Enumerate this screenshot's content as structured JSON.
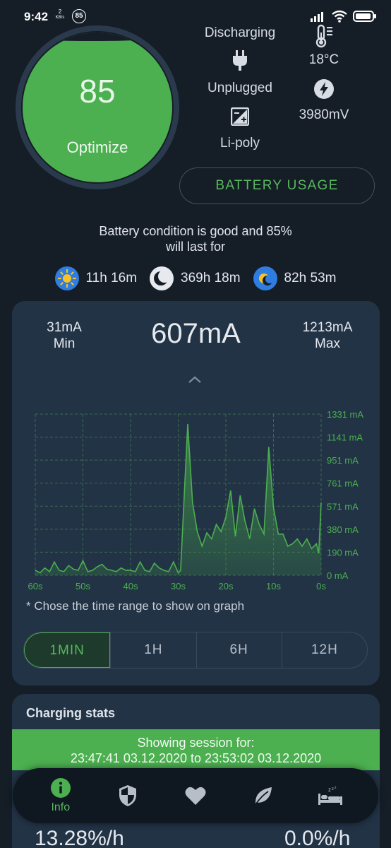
{
  "status_bar": {
    "time": "9:42",
    "net_speed_value": "2",
    "net_speed_unit": "KB/s",
    "notif_badge": "85"
  },
  "battery": {
    "level": "85",
    "level_fraction": 0.85,
    "action_label": "Optimize",
    "status": "Discharging",
    "plug_state": "Unplugged",
    "technology": "Li-poly",
    "temperature": "18°C",
    "voltage": "3980mV",
    "usage_button": "BATTERY USAGE"
  },
  "condition": {
    "line1": "Battery condition is good and 85%",
    "line2": "will last for",
    "estimates": [
      {
        "icon": "sun-icon",
        "value": "11h 16m"
      },
      {
        "icon": "moon-icon",
        "value": "369h 18m"
      },
      {
        "icon": "sun-moon-icon",
        "value": "82h 53m"
      }
    ]
  },
  "current": {
    "min_value": "31mA",
    "min_label": "Min",
    "now_value": "607mA",
    "max_value": "1213mA",
    "max_label": "Max",
    "hint": "* Chose the time range to show on graph",
    "ranges": [
      "1MIN",
      "1H",
      "6H",
      "12H"
    ],
    "active_range": "1MIN"
  },
  "chart_data": {
    "type": "area",
    "x_tick_labels": [
      "60s",
      "50s",
      "40s",
      "30s",
      "20s",
      "10s",
      "0s"
    ],
    "y_tick_labels": [
      "1331 mA",
      "1141 mA",
      "951 mA",
      "761 mA",
      "571 mA",
      "380 mA",
      "190 mA",
      "0 mA"
    ],
    "ylim": [
      0,
      1331
    ],
    "xlim": [
      60,
      0
    ],
    "grid": true,
    "series": [
      {
        "x": [
          60,
          59,
          58,
          57,
          56,
          55,
          54,
          53,
          52,
          51,
          50,
          49,
          48,
          47,
          46,
          45,
          44,
          43,
          42,
          41,
          40,
          39,
          38,
          37,
          36,
          35,
          34,
          33,
          32,
          31,
          30,
          29.5,
          29,
          28,
          27,
          26,
          25,
          24,
          23,
          22,
          21,
          20,
          19,
          18,
          17,
          16,
          15,
          14,
          13,
          12,
          11,
          10,
          9,
          8,
          7,
          6,
          5,
          4,
          3,
          2,
          1,
          0.5,
          0
        ],
        "y": [
          40,
          20,
          60,
          30,
          110,
          40,
          30,
          80,
          50,
          40,
          120,
          30,
          40,
          70,
          90,
          50,
          40,
          30,
          60,
          40,
          40,
          30,
          110,
          40,
          30,
          100,
          60,
          40,
          30,
          110,
          20,
          40,
          450,
          1250,
          600,
          360,
          240,
          350,
          300,
          420,
          360,
          480,
          700,
          320,
          660,
          450,
          300,
          550,
          420,
          340,
          1060,
          560,
          340,
          340,
          240,
          260,
          300,
          240,
          300,
          220,
          260,
          180,
          600
        ]
      }
    ],
    "colors": {
      "line": "#4caf50",
      "fill": "#3f8f48",
      "grid": "#3d6b4a",
      "labels": "#4caf50"
    }
  },
  "charging_stats": {
    "title": "Charging stats",
    "session_line1": "Showing session for:",
    "session_line2": "23:47:41 03.12.2020 to 23:53:02 03.12.2020",
    "rate_left": "13.28%/h",
    "rate_right": "0.0%/h"
  },
  "nav": {
    "items": [
      {
        "icon": "info-icon",
        "label": "Info",
        "active": true
      },
      {
        "icon": "shield-icon",
        "label": ""
      },
      {
        "icon": "heart-icon",
        "label": ""
      },
      {
        "icon": "leaf-icon",
        "label": ""
      },
      {
        "icon": "sleep-icon",
        "label": ""
      }
    ]
  },
  "colors": {
    "accent": "#4caf50",
    "background": "#151d27",
    "card": "#223346"
  }
}
